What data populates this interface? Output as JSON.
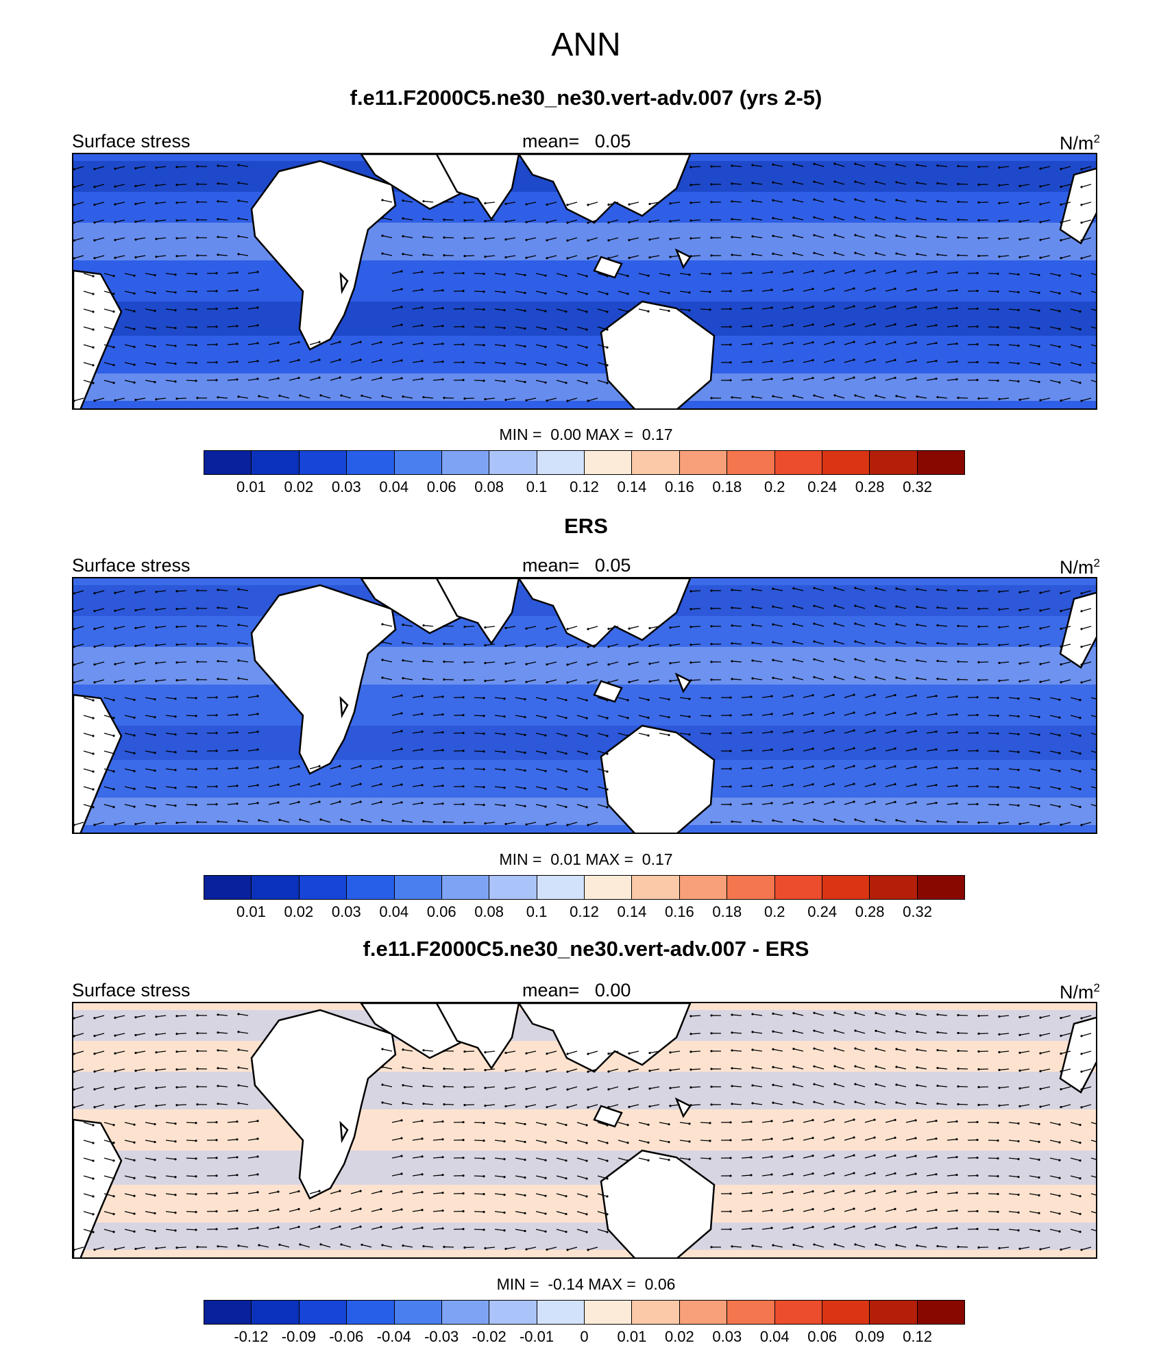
{
  "main_title": "ANN",
  "colorbar_colors": [
    "#08219c",
    "#0b32bd",
    "#1645d8",
    "#275fe9",
    "#4a7ff0",
    "#7ea3f5",
    "#aac3f8",
    "#d3e2fb",
    "#fdebd9",
    "#fbc9a8",
    "#f7a07a",
    "#f3764e",
    "#ec4d2c",
    "#d93514",
    "#b31f08",
    "#880800"
  ],
  "panels": [
    {
      "title": "f.e11.F2000C5.ne30_ne30.vert-adv.007 (yrs 2-5)",
      "left_label": "Surface stress",
      "mean_label": "mean=",
      "mean_value": "0.05",
      "unit": "N/m",
      "unit_sup": "2",
      "min_label": "MIN =",
      "min_value": "0.00",
      "max_label": "MAX =",
      "max_value": "0.17",
      "ticks": [
        "0.01",
        "0.02",
        "0.03",
        "0.04",
        "0.06",
        "0.08",
        "0.1",
        "0.12",
        "0.14",
        "0.16",
        "0.18",
        "0.2",
        "0.24",
        "0.28",
        "0.32"
      ],
      "base_color": "#2f5fe6",
      "accent_color": "#0a2fa8"
    },
    {
      "title": "ERS",
      "left_label": "Surface stress",
      "mean_label": "mean=",
      "mean_value": "0.05",
      "unit": "N/m",
      "unit_sup": "2",
      "min_label": "MIN =",
      "min_value": "0.01",
      "max_label": "MAX =",
      "max_value": "0.17",
      "ticks": [
        "0.01",
        "0.02",
        "0.03",
        "0.04",
        "0.06",
        "0.08",
        "0.1",
        "0.12",
        "0.14",
        "0.16",
        "0.18",
        "0.2",
        "0.24",
        "0.28",
        "0.32"
      ],
      "base_color": "#3b6be8",
      "accent_color": "#1b42c8"
    },
    {
      "title": "f.e11.F2000C5.ne30_ne30.vert-adv.007 - ERS",
      "left_label": "Surface stress",
      "mean_label": "mean=",
      "mean_value": "0.00",
      "unit": "N/m",
      "unit_sup": "2",
      "min_label": "MIN =",
      "min_value": "-0.14",
      "max_label": "MAX =",
      "max_value": "0.06",
      "ticks": [
        "-0.12",
        "-0.09",
        "-0.06",
        "-0.04",
        "-0.03",
        "-0.02",
        "-0.01",
        "0",
        "0.01",
        "0.02",
        "0.03",
        "0.04",
        "0.06",
        "0.09",
        "0.12"
      ],
      "base_color": "#fde3cf",
      "accent_color": "#aac3f8"
    }
  ]
}
